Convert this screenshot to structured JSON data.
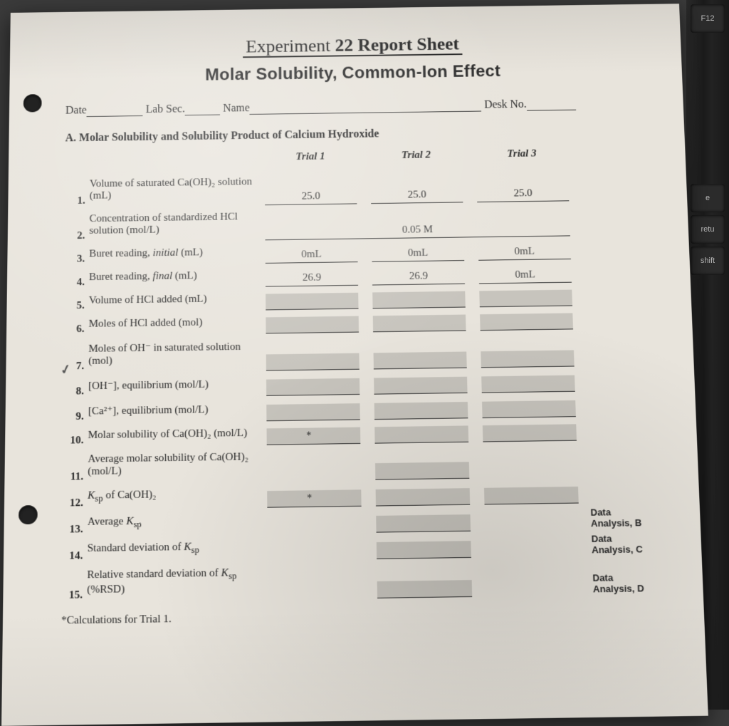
{
  "background": {
    "page_bg": "#3a3a3a",
    "paper_bg": "#e8e4dc"
  },
  "keyboard": {
    "keys": [
      "F12",
      "e",
      "retu",
      "shift"
    ]
  },
  "title": {
    "pre": "Experiment ",
    "bold": "22 Report Sheet"
  },
  "subtitle": "Molar Solubility, Common-Ion Effect",
  "meta": {
    "date": "Date",
    "lab": "Lab Sec.",
    "name": "Name",
    "desk": "Desk No."
  },
  "sectionA": "A.  Molar Solubility and Solubility Product of Calcium Hydroxide",
  "headers": {
    "t1": "Trial 1",
    "t2": "Trial 2",
    "t3": "Trial 3"
  },
  "rows": [
    {
      "n": "1.",
      "label": "Volume of saturated Ca(OH)₂ solution (mL)",
      "v": [
        "25.0",
        "25.0",
        "25.0"
      ],
      "grey": false
    },
    {
      "n": "2.",
      "label": "Concentration of standardized HCl solution (mol/L)",
      "span": true,
      "val": "0.05 M",
      "hand": true
    },
    {
      "n": "3.",
      "label": "Buret reading, <span class='ital'>initial</span> (mL)",
      "v": [
        "0mL",
        "0mL",
        "0mL"
      ],
      "hand": true
    },
    {
      "n": "4.",
      "label": "Buret reading, <span class='ital'>final</span> (mL)",
      "v": [
        "26.9",
        "26.9",
        "0mL"
      ],
      "hand": true
    },
    {
      "n": "5.",
      "label": "Volume of HCl added (mL)",
      "v": [
        "",
        "",
        ""
      ],
      "grey": true
    },
    {
      "n": "6.",
      "label": "Moles of HCl added (mol)",
      "v": [
        "",
        "",
        ""
      ],
      "grey": true
    },
    {
      "n": "7.",
      "label": "Moles of OH⁻ in saturated solution (mol)",
      "v": [
        "",
        "",
        ""
      ],
      "grey": true,
      "check": true
    },
    {
      "n": "8.",
      "label": "[OH⁻], equilibrium (mol/L)",
      "v": [
        "",
        "",
        ""
      ],
      "grey": true
    },
    {
      "n": "9.",
      "label": "[Ca²⁺], equilibrium (mol/L)",
      "v": [
        "",
        "",
        ""
      ],
      "grey": true
    },
    {
      "n": "10.",
      "label": "Molar solubility of Ca(OH)₂ (mol/L)",
      "v": [
        "",
        "",
        ""
      ],
      "grey": true,
      "star0": true
    },
    {
      "n": "11.",
      "label": "Average molar solubility of Ca(OH)₂ (mol/L)",
      "single": true,
      "grey": true
    },
    {
      "n": "12.",
      "label": "<span class='ital'>K</span><sub>sp</sub> of Ca(OH)₂",
      "v": [
        "",
        "",
        ""
      ],
      "grey": true,
      "star0": true
    },
    {
      "n": "13.",
      "label": "Average <span class='ital'>K</span><sub>sp</sub>",
      "single": true,
      "grey": true,
      "note": "Data Analysis, B"
    },
    {
      "n": "14.",
      "label": "Standard deviation of <span class='ital'>K</span><sub>sp</sub>",
      "single": true,
      "grey": true,
      "note": "Data Analysis, C"
    },
    {
      "n": "15.",
      "label": "Relative standard deviation of <span class='ital'>K</span><sub>sp</sub> (%RSD)",
      "single": true,
      "grey": true,
      "note": "Data Analysis, D"
    }
  ],
  "footer": "*Calculations for Trial 1."
}
